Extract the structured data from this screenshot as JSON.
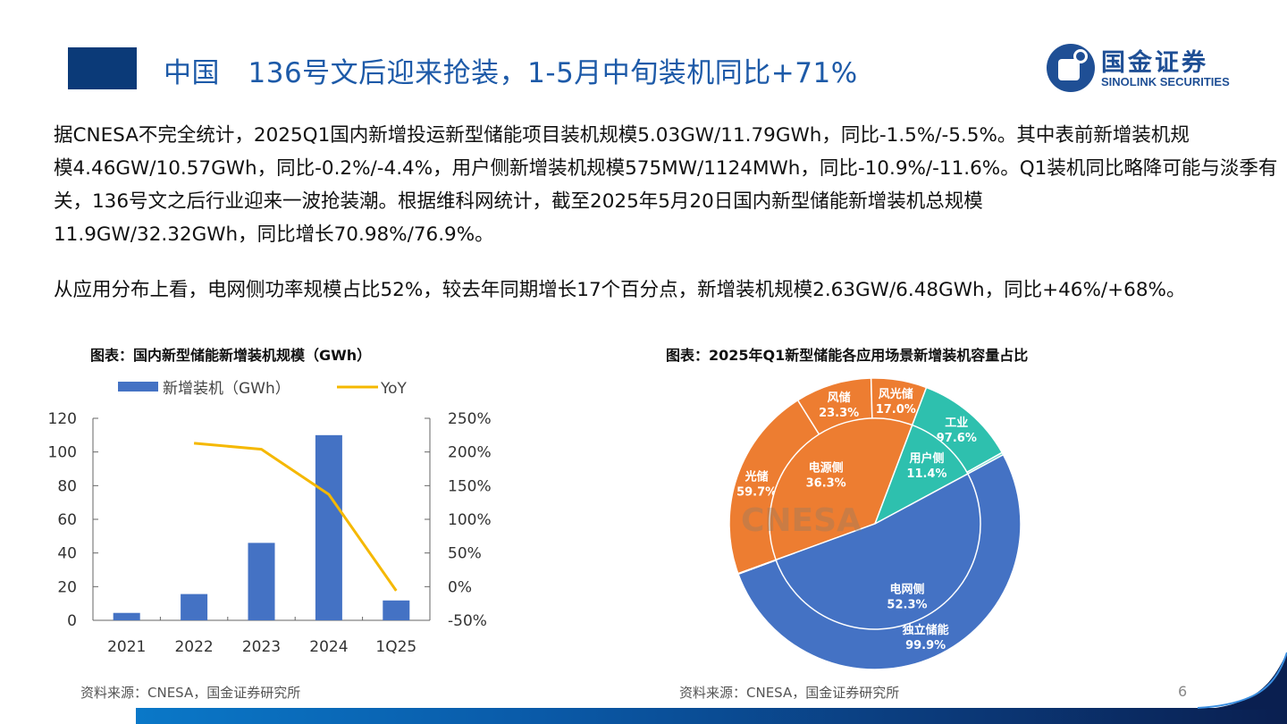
{
  "header": {
    "title": "中国　136号文后迎来抢装，1-5月中旬装机同比+71%",
    "logo_cn": "国金证券",
    "logo_en": "SINOLINK SECURITIES"
  },
  "body": {
    "paragraph1_lines": [
      "据CNESA不完全统计，2025Q1国内新增投运新型储能项目装机规模5.03GW/11.79GWh，同比-1.5%/-5.5%。其中表前新增装机规",
      "模4.46GW/10.57GWh，同比-0.2%/-4.4%，用户侧新增装机规模575MW/1124MWh，同比-10.9%/-11.6%。Q1装机同比略降可能与淡季有",
      "关，136号文之后行业迎来一波抢装潮。根据维科网统计，截至2025年5月20日国内新型储能新增装机总规模",
      "11.9GW/32.32GWh，同比增长70.98%/76.9%。"
    ],
    "paragraph2": "从应用分布上看，电网侧功率规模占比52%，较去年同期增长17个百分点，新增装机规模2.63GW/6.48GWh，同比+46%/+68%。"
  },
  "footer": {
    "source_left": "资料来源：CNESA，国金证券研究所",
    "source_right": "资料来源：CNESA，国金证券研究所",
    "page_number": "6"
  },
  "chart_data": [
    {
      "type": "bar",
      "title": "图表：国内新型储能新增装机规模（GWh）",
      "categories": [
        "2021",
        "2022",
        "2023",
        "2024",
        "1Q25"
      ],
      "series": [
        {
          "name": "新增装机（GWh）",
          "type": "bar",
          "axis": "left",
          "color": "#4472C4",
          "values": [
            4.4,
            15.6,
            46,
            110,
            11.8
          ]
        },
        {
          "name": "YoY",
          "type": "line",
          "axis": "right",
          "color": "#F5B800",
          "values": [
            null,
            213,
            204,
            137,
            -6
          ]
        }
      ],
      "ylim_left": [
        0,
        120
      ],
      "yticks_left": [
        "0",
        "20",
        "40",
        "60",
        "80",
        "100",
        "120"
      ],
      "ylim_right": [
        -50,
        250
      ],
      "yticks_right": [
        "-50%",
        "0%",
        "50%",
        "100%",
        "150%",
        "200%",
        "250%"
      ],
      "legend": "top",
      "grid": false
    },
    {
      "type": "pie",
      "title": "图表：2025年Q1新型储能各应用场景新增装机容量占比",
      "watermark": "CNESA",
      "inner": [
        {
          "name": "电源侧",
          "value": 36.3,
          "label": "36.3%",
          "color": "#ED7D31"
        },
        {
          "name": "用户侧",
          "value": 11.4,
          "label": "11.4%",
          "color": "#2EC0AE"
        },
        {
          "name": "电网侧",
          "value": 52.3,
          "label": "52.3%",
          "color": "#4472C4"
        }
      ],
      "outer": [
        {
          "parent": "电源侧",
          "name": "光储",
          "value": 59.7,
          "label": "59.7%",
          "color": "#ED7D31"
        },
        {
          "parent": "电源侧",
          "name": "风储",
          "value": 23.3,
          "label": "23.3%",
          "color": "#ED7D31"
        },
        {
          "parent": "电源侧",
          "name": "风光储",
          "value": 17.0,
          "label": "17.0%",
          "color": "#ED7D31"
        },
        {
          "parent": "用户侧",
          "name": "工业",
          "value": 97.6,
          "label": "97.6%",
          "color": "#2EC0AE"
        },
        {
          "parent": "用户侧",
          "name": "",
          "value": 2.4,
          "label": "",
          "color": "#6fd6c8"
        },
        {
          "parent": "电网侧",
          "name": "独立储能",
          "value": 99.9,
          "label": "99.9%",
          "color": "#4472C4"
        },
        {
          "parent": "电网侧",
          "name": "",
          "value": 0.1,
          "label": "",
          "color": "#4472C4"
        }
      ]
    }
  ]
}
